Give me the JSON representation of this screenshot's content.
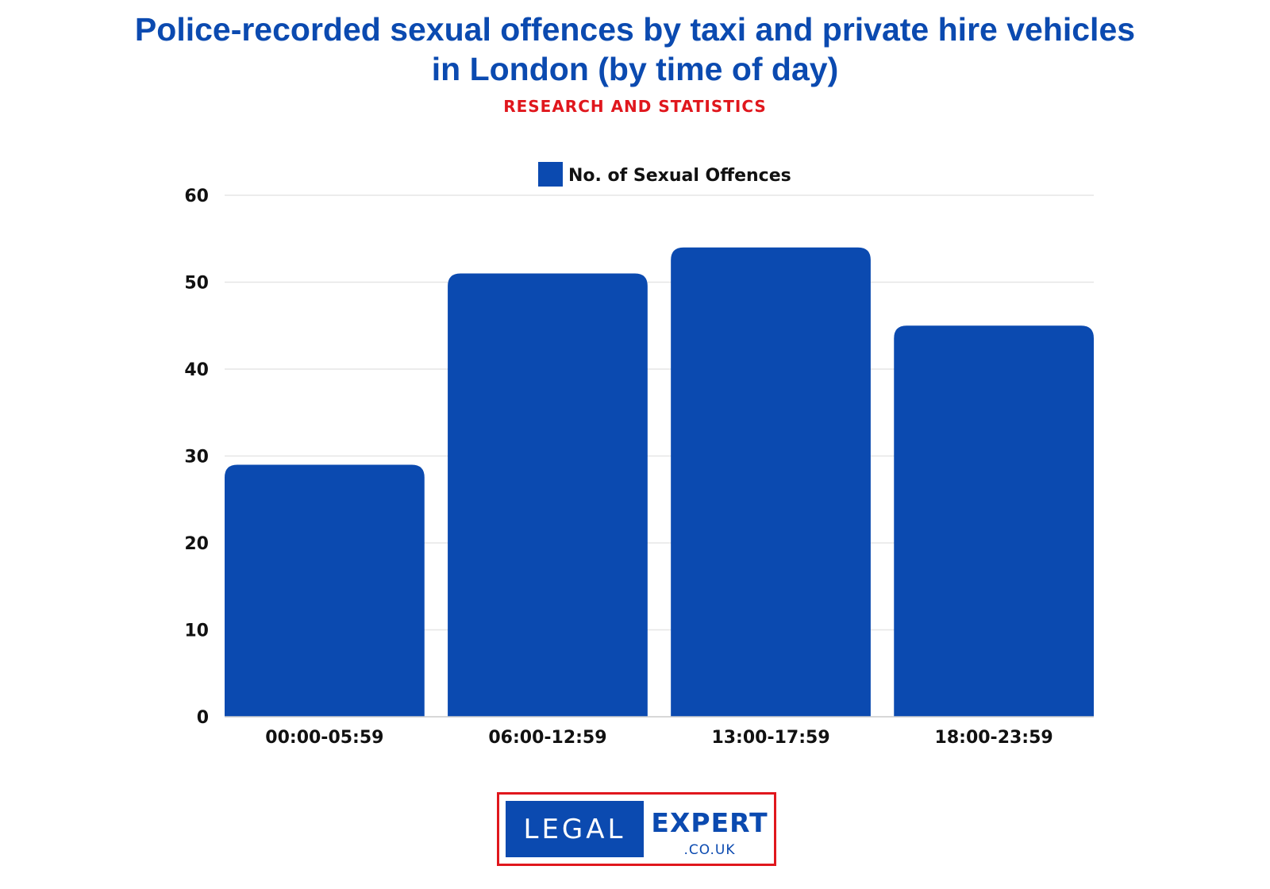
{
  "title_line1": "Police-recorded sexual offences by taxi and private hire vehicles",
  "title_line2": "in London (by time of day)",
  "subtitle": "RESEARCH AND STATISTICS",
  "colors": {
    "bar": "#0b4ab0",
    "title": "#0b4ab0",
    "subtitle": "#e0171d",
    "grid": "#e6e6e6"
  },
  "chart_data": {
    "type": "bar",
    "categories": [
      "00:00-05:59",
      "06:00-12:59",
      "13:00-17:59",
      "18:00-23:59"
    ],
    "series": [
      {
        "name": "No. of Sexual Offences",
        "values": [
          29,
          51,
          54,
          45
        ]
      }
    ],
    "ylim": [
      0,
      60
    ],
    "yticks": [
      0,
      10,
      20,
      30,
      40,
      50,
      60
    ],
    "grid": true,
    "legend": "top-center"
  },
  "logo": {
    "left": "LEGAL",
    "right": "EXPERT",
    "sub": ".CO.UK"
  }
}
